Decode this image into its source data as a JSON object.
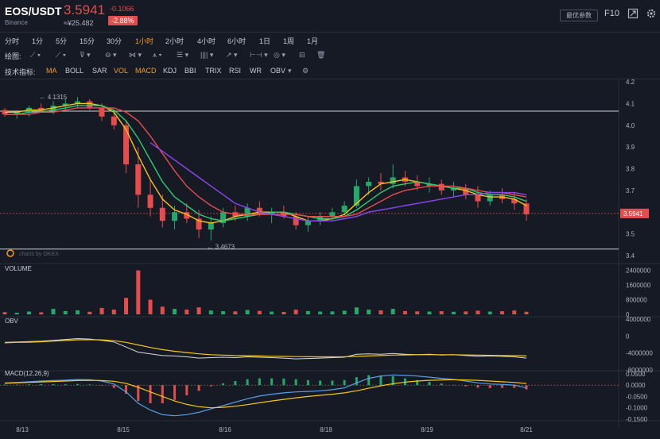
{
  "header": {
    "pair": "EOS/USDT",
    "exchange": "Binance",
    "price": "3.5941",
    "price_cny": "≈¥25.482",
    "change": "-0.1066",
    "change_pct": "-2.88%",
    "latest_params_button": "最优参数",
    "f10_label": "F10"
  },
  "timeframes": [
    "分时",
    "1分",
    "5分",
    "15分",
    "30分",
    "1小时",
    "2小时",
    "4小时",
    "6小时",
    "1日",
    "1周",
    "1月"
  ],
  "active_timeframe": "1小时",
  "drawing": {
    "label": "绘图:"
  },
  "indicators": {
    "label": "技术指标:",
    "items": [
      "MA",
      "BOLL",
      "SAR",
      "VOL",
      "MACD",
      "KDJ",
      "BBI",
      "TRIX",
      "RSI",
      "WR",
      "OBV"
    ],
    "active": [
      "MA",
      "VOL",
      "MACD"
    ]
  },
  "colors": {
    "up": "#26a86a",
    "down": "#e74c4c",
    "accent": "#f59a23",
    "ma_fast": "#f5c518",
    "ma_mid": "#2ecc71",
    "ma_slow": "#e74c4c",
    "ma_long": "#8e44ef",
    "macd_dif": "#5aa0e8",
    "macd_dea": "#f5c518",
    "obv": "#d9d9d9",
    "obv_ma": "#f5c518"
  },
  "chart_data": {
    "type": "candlestick",
    "title": "EOS/USDT",
    "x_tick_labels": [
      "8/13",
      "8/15",
      "8/16",
      "8/18",
      "8/19",
      "8/21"
    ],
    "price_axis": {
      "ticks": [
        "4.2",
        "4.1",
        "4.0",
        "3.9",
        "3.8",
        "3.7",
        "3.6",
        "3.5",
        "3.4"
      ],
      "ylim": [
        3.4,
        4.2
      ]
    },
    "current_price_label": "3.5941",
    "annotations": {
      "high": "← 4.1315",
      "low": "← 3.4673",
      "watermark": "charts by OKEX"
    },
    "ohlc": [
      [
        4.07,
        4.08,
        4.04,
        4.05
      ],
      [
        4.05,
        4.07,
        4.03,
        4.06
      ],
      [
        4.06,
        4.09,
        4.04,
        4.08
      ],
      [
        4.08,
        4.1,
        4.06,
        4.07
      ],
      [
        4.07,
        4.11,
        4.05,
        4.09
      ],
      [
        4.09,
        4.12,
        4.07,
        4.1
      ],
      [
        4.1,
        4.13,
        4.08,
        4.11
      ],
      [
        4.11,
        4.12,
        4.07,
        4.08
      ],
      [
        4.08,
        4.1,
        4.02,
        4.04
      ],
      [
        4.04,
        4.06,
        3.98,
        4.0
      ],
      [
        4.0,
        4.02,
        3.78,
        3.82
      ],
      [
        3.82,
        3.9,
        3.62,
        3.68
      ],
      [
        3.68,
        3.75,
        3.58,
        3.62
      ],
      [
        3.62,
        3.68,
        3.53,
        3.56
      ],
      [
        3.56,
        3.63,
        3.52,
        3.6
      ],
      [
        3.6,
        3.64,
        3.55,
        3.57
      ],
      [
        3.57,
        3.61,
        3.48,
        3.52
      ],
      [
        3.52,
        3.58,
        3.47,
        3.55
      ],
      [
        3.55,
        3.62,
        3.53,
        3.6
      ],
      [
        3.6,
        3.63,
        3.56,
        3.58
      ],
      [
        3.58,
        3.64,
        3.56,
        3.62
      ],
      [
        3.62,
        3.65,
        3.58,
        3.59
      ],
      [
        3.59,
        3.62,
        3.55,
        3.6
      ],
      [
        3.6,
        3.63,
        3.57,
        3.58
      ],
      [
        3.58,
        3.6,
        3.52,
        3.54
      ],
      [
        3.54,
        3.58,
        3.51,
        3.56
      ],
      [
        3.56,
        3.6,
        3.54,
        3.58
      ],
      [
        3.58,
        3.62,
        3.56,
        3.6
      ],
      [
        3.6,
        3.65,
        3.58,
        3.63
      ],
      [
        3.63,
        3.75,
        3.62,
        3.72
      ],
      [
        3.72,
        3.76,
        3.68,
        3.74
      ],
      [
        3.74,
        3.78,
        3.7,
        3.73
      ],
      [
        3.73,
        3.82,
        3.71,
        3.76
      ],
      [
        3.76,
        3.79,
        3.72,
        3.74
      ],
      [
        3.74,
        3.77,
        3.7,
        3.72
      ],
      [
        3.72,
        3.76,
        3.69,
        3.73
      ],
      [
        3.73,
        3.75,
        3.68,
        3.7
      ],
      [
        3.7,
        3.74,
        3.67,
        3.71
      ],
      [
        3.71,
        3.73,
        3.66,
        3.68
      ],
      [
        3.68,
        3.72,
        3.62,
        3.65
      ],
      [
        3.65,
        3.7,
        3.63,
        3.68
      ],
      [
        3.68,
        3.71,
        3.64,
        3.66
      ],
      [
        3.66,
        3.69,
        3.61,
        3.64
      ],
      [
        3.64,
        3.66,
        3.56,
        3.59
      ]
    ],
    "ma_lines": [
      {
        "values": [
          4.06,
          4.06,
          4.07,
          4.07,
          4.08,
          4.09,
          4.1,
          4.1,
          4.09,
          4.06,
          3.98,
          3.86,
          3.75,
          3.66,
          3.61,
          3.59,
          3.56,
          3.55,
          3.56,
          3.58,
          3.59,
          3.6,
          3.6,
          3.6,
          3.58,
          3.56,
          3.56,
          3.57,
          3.59,
          3.64,
          3.69,
          3.73,
          3.74,
          3.75,
          3.74,
          3.73,
          3.72,
          3.71,
          3.7,
          3.68,
          3.67,
          3.67,
          3.66,
          3.63
        ]
      },
      {
        "values": [
          4.05,
          4.05,
          4.06,
          4.06,
          4.07,
          4.08,
          4.09,
          4.09,
          4.09,
          4.07,
          4.02,
          3.94,
          3.84,
          3.74,
          3.67,
          3.63,
          3.59,
          3.57,
          3.56,
          3.57,
          3.58,
          3.59,
          3.6,
          3.6,
          3.59,
          3.58,
          3.57,
          3.57,
          3.58,
          3.61,
          3.65,
          3.69,
          3.72,
          3.73,
          3.74,
          3.73,
          3.72,
          3.71,
          3.71,
          3.69,
          3.68,
          3.68,
          3.67,
          3.65
        ]
      },
      {
        "values": [
          4.05,
          4.05,
          4.05,
          4.06,
          4.06,
          4.07,
          4.08,
          4.08,
          4.08,
          4.08,
          4.06,
          4.02,
          3.95,
          3.87,
          3.79,
          3.72,
          3.67,
          3.63,
          3.6,
          3.59,
          3.59,
          3.59,
          3.59,
          3.59,
          3.59,
          3.58,
          3.58,
          3.58,
          3.58,
          3.59,
          3.62,
          3.65,
          3.68,
          3.7,
          3.71,
          3.72,
          3.72,
          3.72,
          3.71,
          3.7,
          3.69,
          3.69,
          3.68,
          3.67
        ]
      },
      {
        "values": [
          null,
          null,
          null,
          null,
          null,
          null,
          null,
          null,
          null,
          null,
          null,
          null,
          3.92,
          3.88,
          3.84,
          3.8,
          3.76,
          3.72,
          3.68,
          3.64,
          3.62,
          3.6,
          3.59,
          3.58,
          3.57,
          3.56,
          3.56,
          3.56,
          3.57,
          3.58,
          3.6,
          3.61,
          3.62,
          3.63,
          3.64,
          3.65,
          3.66,
          3.67,
          3.68,
          3.68,
          3.69,
          3.69,
          3.69,
          3.68
        ]
      }
    ],
    "volume": {
      "label": "VOLUME",
      "ticks": [
        "2400000",
        "1600000",
        "800000",
        "0"
      ],
      "ylim": [
        0,
        2600000
      ],
      "values": [
        120000,
        90000,
        150000,
        110000,
        300000,
        180000,
        220000,
        140000,
        350000,
        260000,
        900000,
        2400000,
        800000,
        420000,
        300000,
        260000,
        380000,
        210000,
        170000,
        160000,
        240000,
        190000,
        150000,
        130000,
        260000,
        180000,
        150000,
        160000,
        200000,
        380000,
        260000,
        220000,
        300000,
        180000,
        160000,
        150000,
        170000,
        140000,
        160000,
        200000,
        150000,
        170000,
        210000,
        140000
      ]
    },
    "obv": {
      "label": "OBV",
      "ticks": [
        "4000000",
        "0",
        "-4000000",
        "-8000000"
      ],
      "ylim": [
        -8000000,
        4000000
      ],
      "values": [
        -1500000,
        -1400000,
        -1300000,
        -1200000,
        -1000000,
        -800000,
        -600000,
        -700000,
        -1000000,
        -1400000,
        -2600000,
        -3800000,
        -4200000,
        -4600000,
        -4700000,
        -4900000,
        -5200000,
        -5100000,
        -5000000,
        -5100000,
        -4900000,
        -5000000,
        -5100000,
        -5200000,
        -5400000,
        -5300000,
        -5200000,
        -5100000,
        -5000000,
        -4300000,
        -4200000,
        -4300000,
        -4100000,
        -4300000,
        -4400000,
        -4300000,
        -4500000,
        -4400000,
        -4600000,
        -4800000,
        -4700000,
        -4800000,
        -4900000,
        -5200000
      ],
      "ma": [
        -1600000,
        -1500000,
        -1450000,
        -1350000,
        -1200000,
        -1050000,
        -900000,
        -850000,
        -900000,
        -1100000,
        -1500000,
        -2100000,
        -2700000,
        -3200000,
        -3600000,
        -3900000,
        -4200000,
        -4400000,
        -4500000,
        -4600000,
        -4650000,
        -4700000,
        -4750000,
        -4800000,
        -4850000,
        -4880000,
        -4900000,
        -4900000,
        -4880000,
        -4800000,
        -4700000,
        -4600000,
        -4500000,
        -4450000,
        -4400000,
        -4400000,
        -4400000,
        -4420000,
        -4450000,
        -4500000,
        -4550000,
        -4580000,
        -4620000,
        -4700000
      ]
    },
    "macd": {
      "label": "MACD(12,26,9)",
      "ticks": [
        "0.0500",
        "0.0000",
        "-0.0500",
        "-0.1000",
        "-0.1500"
      ],
      "ylim": [
        -0.15,
        0.06
      ],
      "dif": [
        0.01,
        0.012,
        0.015,
        0.018,
        0.02,
        0.022,
        0.025,
        0.024,
        0.018,
        0.005,
        -0.03,
        -0.08,
        -0.11,
        -0.13,
        -0.135,
        -0.13,
        -0.12,
        -0.105,
        -0.09,
        -0.075,
        -0.06,
        -0.048,
        -0.04,
        -0.034,
        -0.03,
        -0.028,
        -0.025,
        -0.02,
        -0.012,
        0.01,
        0.03,
        0.04,
        0.045,
        0.043,
        0.04,
        0.035,
        0.03,
        0.025,
        0.018,
        0.01,
        0.005,
        0.003,
        0.0,
        -0.012
      ],
      "dea": [
        0.008,
        0.01,
        0.012,
        0.014,
        0.016,
        0.018,
        0.02,
        0.021,
        0.02,
        0.017,
        0.008,
        -0.01,
        -0.03,
        -0.05,
        -0.07,
        -0.085,
        -0.095,
        -0.1,
        -0.098,
        -0.093,
        -0.086,
        -0.078,
        -0.07,
        -0.063,
        -0.056,
        -0.05,
        -0.045,
        -0.04,
        -0.034,
        -0.025,
        -0.014,
        -0.003,
        0.006,
        0.013,
        0.018,
        0.021,
        0.023,
        0.024,
        0.023,
        0.021,
        0.018,
        0.015,
        0.012,
        0.007
      ],
      "histogram": [
        0.002,
        0.002,
        0.003,
        0.004,
        0.004,
        0.004,
        0.005,
        0.003,
        -0.002,
        -0.012,
        -0.038,
        -0.07,
        -0.08,
        -0.08,
        -0.065,
        -0.045,
        -0.025,
        -0.005,
        0.008,
        0.018,
        0.026,
        0.03,
        0.03,
        0.029,
        0.026,
        0.022,
        0.02,
        0.02,
        0.022,
        0.035,
        0.044,
        0.043,
        0.039,
        0.03,
        0.022,
        0.014,
        0.007,
        0.001,
        -0.005,
        -0.011,
        -0.013,
        -0.012,
        -0.012,
        -0.019
      ]
    }
  }
}
